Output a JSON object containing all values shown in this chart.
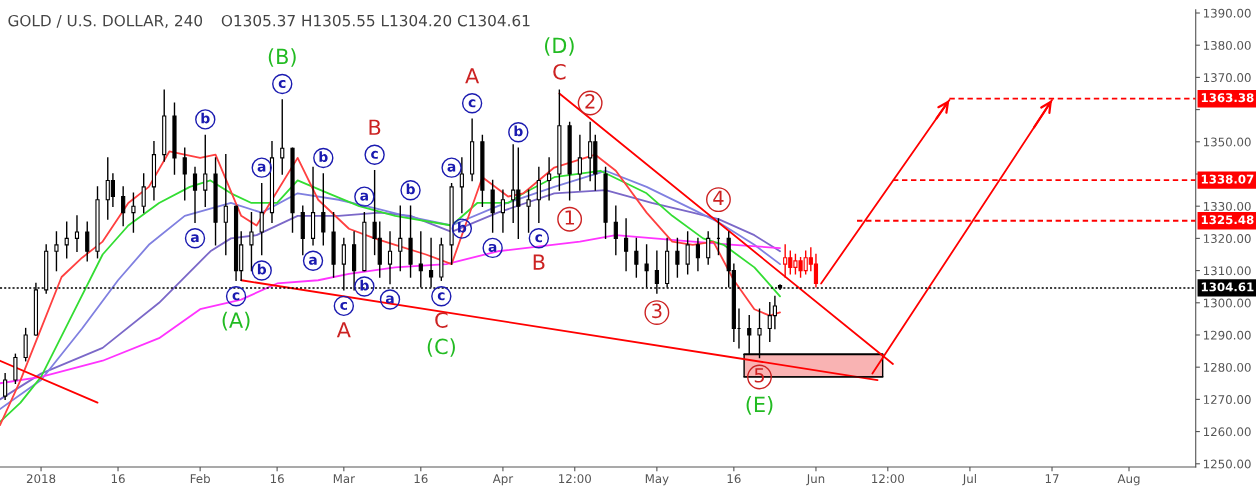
{
  "chart_data": {
    "type": "candlestick",
    "title": "GOLD / U.S. DOLLAR, 240",
    "subtitle": "O1305.37 H1305.55 L1304.20 C1304.61",
    "xlim": [
      "2017-12-24",
      "2018-08-14"
    ],
    "xticks": [
      {
        "value": "2018-01-01",
        "label": "2018"
      },
      {
        "value": "2018-01-16",
        "label": "16"
      },
      {
        "value": "2018-02-01",
        "label": "Feb"
      },
      {
        "value": "2018-02-16",
        "label": "16"
      },
      {
        "value": "2018-03-01",
        "label": "Mar"
      },
      {
        "value": "2018-03-16",
        "label": "16"
      },
      {
        "value": "2018-04-01",
        "label": "Apr"
      },
      {
        "value": "2018-04-15",
        "label": "12:00"
      },
      {
        "value": "2018-05-01",
        "label": "May"
      },
      {
        "value": "2018-05-16",
        "label": "16"
      },
      {
        "value": "2018-06-01",
        "label": "Jun"
      },
      {
        "value": "2018-06-15",
        "label": "12:00"
      },
      {
        "value": "2018-07-01",
        "label": "Jul"
      },
      {
        "value": "2018-07-17",
        "label": "17"
      },
      {
        "value": "2018-08-01",
        "label": "Aug"
      }
    ],
    "ylim": [
      1249,
      1391
    ],
    "yticks": [
      {
        "value": 1250,
        "label": "1250.00"
      },
      {
        "value": 1260,
        "label": "1260.00"
      },
      {
        "value": 1270,
        "label": "1270.00"
      },
      {
        "value": 1280,
        "label": "1280.00"
      },
      {
        "value": 1290,
        "label": "1290.00"
      },
      {
        "value": 1300,
        "label": "1300.00"
      },
      {
        "value": 1310,
        "label": "1310.00"
      },
      {
        "value": 1320,
        "label": "1320.00"
      },
      {
        "value": 1330,
        "label": "1330.00"
      },
      {
        "value": 1340,
        "label": null
      },
      {
        "value": 1350,
        "label": "1350.00"
      },
      {
        "value": 1360,
        "label": null
      },
      {
        "value": 1370,
        "label": "1370.00"
      },
      {
        "value": 1380,
        "label": "1380.00"
      },
      {
        "value": 1390,
        "label": "1390.00"
      }
    ],
    "series": [
      {
        "type": "line",
        "color": "#7b68c8",
        "x": [
          "2017-12-24",
          "2018-01-01",
          "2018-01-13",
          "2018-01-24",
          "2018-02-03",
          "2018-02-07",
          "2018-02-12",
          "2018-02-20",
          "2018-02-28",
          "2018-03-08",
          "2018-03-14",
          "2018-03-22",
          "2018-03-31",
          "2018-04-11",
          "2018-04-21",
          "2018-04-30",
          "2018-05-08",
          "2018-05-13",
          "2018-05-20",
          "2018-05-25"
        ],
        "values": [
          1270,
          1278,
          1286,
          1300,
          1316,
          1320,
          1321,
          1327,
          1327,
          1328,
          1327,
          1322,
          1328,
          1334,
          1335,
          1331,
          1328,
          1326,
          1321,
          1316
        ]
      },
      {
        "type": "line",
        "color": "#8080e0",
        "x": [
          "2017-12-24",
          "2018-01-01",
          "2018-01-09",
          "2018-01-16",
          "2018-01-22",
          "2018-01-29",
          "2018-02-07",
          "2018-02-13",
          "2018-02-20",
          "2018-02-28",
          "2018-03-08",
          "2018-03-13",
          "2018-03-22",
          "2018-03-31",
          "2018-04-11",
          "2018-04-21",
          "2018-04-29",
          "2018-05-08",
          "2018-05-13",
          "2018-05-20",
          "2018-05-25"
        ],
        "values": [
          1267,
          1276,
          1292,
          1307,
          1318,
          1327,
          1331,
          1328,
          1334,
          1332,
          1329,
          1327,
          1324,
          1330,
          1336,
          1341,
          1336,
          1329,
          1325,
          1318,
          1312
        ]
      },
      {
        "type": "line",
        "color": "#ff33ff",
        "x": [
          "2017-12-24",
          "2018-01-01",
          "2018-01-13",
          "2018-01-24",
          "2018-02-01",
          "2018-02-09",
          "2018-02-16",
          "2018-02-24",
          "2018-03-02",
          "2018-03-11",
          "2018-03-21",
          "2018-03-31",
          "2018-04-16",
          "2018-04-23",
          "2018-05-08",
          "2018-05-16",
          "2018-05-25"
        ],
        "values": [
          1275,
          1277,
          1282,
          1289,
          1298,
          1301,
          1306,
          1307,
          1309,
          1311,
          1312,
          1316,
          1319,
          1321,
          1319,
          1318,
          1317
        ]
      },
      {
        "type": "line",
        "color": "#33dd33",
        "x": [
          "2017-12-24",
          "2017-12-28",
          "2018-01-01",
          "2018-01-07",
          "2018-01-13",
          "2018-01-18",
          "2018-01-24",
          "2018-01-30",
          "2018-02-03",
          "2018-02-07",
          "2018-02-11",
          "2018-02-16",
          "2018-02-20",
          "2018-02-26",
          "2018-03-04",
          "2018-03-11",
          "2018-03-22",
          "2018-03-27",
          "2018-04-02",
          "2018-04-05",
          "2018-04-11",
          "2018-04-20",
          "2018-04-29",
          "2018-05-04",
          "2018-05-10",
          "2018-05-14",
          "2018-05-20",
          "2018-05-25"
        ],
        "values": [
          1263,
          1269,
          1277,
          1296,
          1315,
          1324,
          1331,
          1336,
          1338,
          1334,
          1331,
          1331,
          1338,
          1334,
          1330,
          1327,
          1324,
          1331,
          1331,
          1334,
          1339,
          1341,
          1334,
          1327,
          1320,
          1318,
          1311,
          1302
        ]
      },
      {
        "type": "line",
        "color": "#ff4040",
        "x": [
          "2017-12-24",
          "2017-12-28",
          "2018-01-01",
          "2018-01-05",
          "2018-01-09",
          "2018-01-13",
          "2018-01-18",
          "2018-01-22",
          "2018-01-26",
          "2018-02-01",
          "2018-02-04",
          "2018-02-09",
          "2018-02-12",
          "2018-02-15",
          "2018-02-20",
          "2018-02-24",
          "2018-03-02",
          "2018-03-07",
          "2018-03-11",
          "2018-03-17",
          "2018-03-22",
          "2018-03-26",
          "2018-03-28",
          "2018-04-02",
          "2018-04-05",
          "2018-04-11",
          "2018-04-19",
          "2018-04-23",
          "2018-04-29",
          "2018-05-04",
          "2018-05-08",
          "2018-05-12",
          "2018-05-16",
          "2018-05-20",
          "2018-05-23",
          "2018-05-25"
        ],
        "values": [
          1262,
          1276,
          1292,
          1308,
          1314,
          1319,
          1331,
          1336,
          1347,
          1345,
          1346,
          1327,
          1324,
          1332,
          1345,
          1332,
          1323,
          1320,
          1318,
          1315,
          1312,
          1330,
          1339,
          1333,
          1334,
          1342,
          1346,
          1341,
          1328,
          1319,
          1318,
          1319,
          1307,
          1298,
          1296,
          1297
        ]
      },
      {
        "color": "#000000",
        "x": [
          "2017-12-25",
          "2017-12-27",
          "2017-12-29",
          "2017-12-31",
          "2018-01-02",
          "2018-01-04",
          "2018-01-06",
          "2018-01-08",
          "2018-01-10",
          "2018-01-12",
          "2018-01-14",
          "2018-01-15",
          "2018-01-17",
          "2018-01-19",
          "2018-01-21",
          "2018-01-23",
          "2018-01-25",
          "2018-01-27",
          "2018-01-29",
          "2018-01-31",
          "2018-02-02",
          "2018-02-04",
          "2018-02-06",
          "2018-02-08",
          "2018-02-09",
          "2018-02-11",
          "2018-02-13",
          "2018-02-15",
          "2018-02-17",
          "2018-02-19",
          "2018-02-21",
          "2018-02-23",
          "2018-02-25",
          "2018-02-27",
          "2018-03-01",
          "2018-03-03",
          "2018-03-05",
          "2018-03-07",
          "2018-03-08",
          "2018-03-10",
          "2018-03-12",
          "2018-03-14",
          "2018-03-16",
          "2018-03-18",
          "2018-03-20",
          "2018-03-22",
          "2018-03-24",
          "2018-03-26",
          "2018-03-28",
          "2018-03-30",
          "2018-04-01",
          "2018-04-03",
          "2018-04-04",
          "2018-04-06",
          "2018-04-08",
          "2018-04-10",
          "2018-04-12",
          "2018-04-14",
          "2018-04-16",
          "2018-04-18",
          "2018-04-19",
          "2018-04-21",
          "2018-04-23",
          "2018-04-25",
          "2018-04-27",
          "2018-04-29",
          "2018-05-01",
          "2018-05-03",
          "2018-05-05",
          "2018-05-07",
          "2018-05-09",
          "2018-05-11",
          "2018-05-13",
          "2018-05-15",
          "2018-05-16",
          "2018-05-17",
          "2018-05-19",
          "2018-05-21",
          "2018-05-23",
          "2018-05-24",
          "2018-05-25"
        ],
        "ohlc": [
          [
            1271,
            1278,
            1270,
            1276
          ],
          [
            1276,
            1284,
            1275,
            1283
          ],
          [
            1283,
            1292,
            1282,
            1290
          ],
          [
            1290,
            1306,
            1290,
            1304
          ],
          [
            1304,
            1318,
            1303,
            1316
          ],
          [
            1316,
            1322,
            1310,
            1318
          ],
          [
            1318,
            1325,
            1314,
            1320
          ],
          [
            1320,
            1327,
            1316,
            1322
          ],
          [
            1322,
            1325,
            1313,
            1316
          ],
          [
            1316,
            1336,
            1314,
            1332
          ],
          [
            1332,
            1345,
            1326,
            1338
          ],
          [
            1338,
            1340,
            1330,
            1333
          ],
          [
            1333,
            1336,
            1324,
            1328
          ],
          [
            1328,
            1334,
            1322,
            1330
          ],
          [
            1330,
            1340,
            1328,
            1336
          ],
          [
            1336,
            1350,
            1332,
            1346
          ],
          [
            1346,
            1366,
            1344,
            1358
          ],
          [
            1358,
            1362,
            1340,
            1345
          ],
          [
            1345,
            1348,
            1332,
            1340
          ],
          [
            1340,
            1342,
            1325,
            1335
          ],
          [
            1335,
            1352,
            1330,
            1340
          ],
          [
            1340,
            1345,
            1318,
            1325
          ],
          [
            1325,
            1346,
            1315,
            1330
          ],
          [
            1330,
            1330,
            1307,
            1310
          ],
          [
            1310,
            1322,
            1307,
            1318
          ],
          [
            1318,
            1328,
            1310,
            1322
          ],
          [
            1322,
            1337,
            1315,
            1328
          ],
          [
            1328,
            1350,
            1325,
            1345
          ],
          [
            1345,
            1363,
            1340,
            1348
          ],
          [
            1348,
            1348,
            1322,
            1328
          ],
          [
            1328,
            1330,
            1315,
            1320
          ],
          [
            1320,
            1342,
            1318,
            1328
          ],
          [
            1328,
            1340,
            1318,
            1322
          ],
          [
            1322,
            1328,
            1308,
            1312
          ],
          [
            1312,
            1320,
            1304,
            1318
          ],
          [
            1318,
            1322,
            1304,
            1310
          ],
          [
            1310,
            1328,
            1310,
            1325
          ],
          [
            1325,
            1341,
            1315,
            1320
          ],
          [
            1320,
            1325,
            1308,
            1312
          ],
          [
            1312,
            1322,
            1306,
            1316
          ],
          [
            1316,
            1330,
            1310,
            1320
          ],
          [
            1320,
            1330,
            1308,
            1312
          ],
          [
            1312,
            1322,
            1305,
            1310
          ],
          [
            1310,
            1320,
            1305,
            1308
          ],
          [
            1308,
            1320,
            1307,
            1318
          ],
          [
            1318,
            1337,
            1312,
            1336
          ],
          [
            1336,
            1345,
            1328,
            1340
          ],
          [
            1340,
            1357,
            1338,
            1350
          ],
          [
            1350,
            1352,
            1330,
            1335
          ],
          [
            1335,
            1338,
            1322,
            1328
          ],
          [
            1328,
            1335,
            1322,
            1332
          ],
          [
            1332,
            1349,
            1325,
            1335
          ],
          [
            1335,
            1348,
            1320,
            1330
          ],
          [
            1330,
            1335,
            1322,
            1332
          ],
          [
            1332,
            1342,
            1325,
            1338
          ],
          [
            1338,
            1345,
            1332,
            1340
          ],
          [
            1340,
            1366,
            1335,
            1355
          ],
          [
            1355,
            1356,
            1332,
            1340
          ],
          [
            1340,
            1352,
            1335,
            1345
          ],
          [
            1345,
            1356,
            1338,
            1350
          ],
          [
            1350,
            1352,
            1335,
            1340
          ],
          [
            1340,
            1342,
            1320,
            1325
          ],
          [
            1325,
            1330,
            1315,
            1320
          ],
          [
            1320,
            1326,
            1310,
            1316
          ],
          [
            1316,
            1320,
            1308,
            1312
          ],
          [
            1312,
            1318,
            1305,
            1310
          ],
          [
            1310,
            1316,
            1303,
            1306
          ],
          [
            1306,
            1320,
            1305,
            1316
          ],
          [
            1316,
            1320,
            1308,
            1312
          ],
          [
            1312,
            1322,
            1309,
            1318
          ],
          [
            1318,
            1320,
            1310,
            1314
          ],
          [
            1314,
            1322,
            1312,
            1320
          ],
          [
            1320,
            1326,
            1315,
            1320
          ],
          [
            1320,
            1322,
            1305,
            1310
          ],
          [
            1310,
            1312,
            1288,
            1292
          ],
          [
            1292,
            1298,
            1286,
            1292
          ],
          [
            1292,
            1296,
            1284,
            1290
          ],
          [
            1290,
            1298,
            1283,
            1292
          ],
          [
            1292,
            1300,
            1288,
            1296
          ],
          [
            1296,
            1302,
            1292,
            1299
          ],
          [
            1305.37,
            1305.55,
            1304.2,
            1304.61
          ]
        ]
      },
      {
        "color": "#ff0000",
        "x": [
          "2018-05-26",
          "2018-05-27",
          "2018-05-28",
          "2018-05-29",
          "2018-05-30",
          "2018-05-31",
          "2018-06-01"
        ],
        "ohlc": [
          [
            1312,
            1318,
            1308,
            1314
          ],
          [
            1314,
            1316,
            1309,
            1311
          ],
          [
            1311,
            1315,
            1309,
            1313
          ],
          [
            1313,
            1314,
            1308,
            1310
          ],
          [
            1310,
            1316,
            1309,
            1314
          ],
          [
            1314,
            1317,
            1310,
            1312
          ],
          [
            1312,
            1315,
            1305,
            1306
          ]
        ]
      },
      {
        "type": "line",
        "color": "#000000",
        "x": [
          "2018-05-18",
          "2018-06-14"
        ],
        "values": [
          1284,
          1284
        ],
        "lower": [
          1277,
          1277
        ],
        "upper": [
          1284,
          1284
        ]
      },
      {
        "type": "line",
        "color": "#ff0000",
        "x": [
          "2017-12-24",
          "2018-01-12"
        ],
        "values": [
          1282,
          1269
        ]
      },
      {
        "type": "line",
        "color": "#ff0000",
        "x": [
          "2018-02-09",
          "2018-06-13"
        ],
        "values": [
          1307,
          1276
        ]
      },
      {
        "type": "line",
        "color": "#ff0000",
        "x": [
          "2018-04-12",
          "2018-06-16"
        ],
        "values": [
          1365,
          1281
        ]
      },
      {
        "type": "line",
        "color": "#ff0000",
        "x": [
          "2018-06-02",
          "2018-06-27"
        ],
        "values": [
          1306,
          1363
        ]
      },
      {
        "type": "line",
        "color": "#ff0000",
        "x": [
          "2018-06-12",
          "2018-07-17"
        ],
        "values": [
          1278,
          1363
        ]
      },
      {
        "type": "line",
        "color": "#ff0000",
        "line_style": "dashed",
        "x": [
          "2018-06-27",
          "2018-08-14"
        ],
        "values": [
          1363.38,
          1363.38
        ],
        "value_labels": [
          null,
          "1363.38"
        ]
      },
      {
        "type": "line",
        "color": "#ff0000",
        "line_style": "dashed",
        "x": [
          "2018-06-16",
          "2018-08-14"
        ],
        "values": [
          1338.07,
          1338.07
        ],
        "value_labels": [
          null,
          "1338.07"
        ]
      },
      {
        "type": "line",
        "color": "#ff0000",
        "line_style": "dashed",
        "x": [
          "2018-06-09",
          "2018-08-14"
        ],
        "values": [
          1325.48,
          1325.48
        ],
        "value_labels": [
          null,
          "1325.48"
        ]
      }
    ],
    "ref_lines": [
      {
        "axis": "y",
        "value": 1304.61,
        "label": "1304.61",
        "color": "#000000",
        "line_style": "dotted"
      }
    ],
    "annotations": [
      {
        "text": "c",
        "x": "2018-02-17",
        "y": 1363
      },
      {
        "text": "(B)",
        "x": "2018-02-17",
        "y": 1363
      },
      {
        "text": "C",
        "x": "2018-04-12",
        "y": 1366
      },
      {
        "text": "(D)",
        "x": "2018-04-12",
        "y": 1366
      },
      {
        "text": "c",
        "x": "2018-02-08",
        "y": 1307
      },
      {
        "text": "(A)",
        "x": "2018-02-08",
        "y": 1307
      },
      {
        "text": "c",
        "x": "2018-03-01",
        "y": 1304
      },
      {
        "text": "A",
        "x": "2018-03-01",
        "y": 1304
      },
      {
        "text": "c",
        "x": "2018-03-20",
        "y": 1307
      },
      {
        "text": "C",
        "x": "2018-03-20",
        "y": 1307
      },
      {
        "text": "(C)",
        "x": "2018-03-20",
        "y": 1307
      },
      {
        "text": "c",
        "x": "2018-03-26",
        "y": 1357
      },
      {
        "text": "A",
        "x": "2018-03-26",
        "y": 1357
      },
      {
        "text": "c",
        "x": "2018-03-07",
        "y": 1341
      },
      {
        "text": "B",
        "x": "2018-03-07",
        "y": 1341
      },
      {
        "text": "5",
        "x": "2018-05-21",
        "y": 1283
      },
      {
        "text": "(E)",
        "x": "2018-05-21",
        "y": 1283
      },
      {
        "text": "c",
        "x": "2018-04-08",
        "y": 1325
      },
      {
        "text": "B",
        "x": "2018-04-08",
        "y": 1325
      },
      {
        "text": "1",
        "x": "2018-04-14",
        "y": 1332
      },
      {
        "text": "2",
        "x": "2018-04-18",
        "y": 1356
      },
      {
        "text": "3",
        "x": "2018-05-01",
        "y": 1303
      },
      {
        "text": "4",
        "x": "2018-05-13",
        "y": 1326
      },
      {
        "text": "a",
        "x": "2018-01-31",
        "y": 1325
      },
      {
        "text": "b",
        "x": "2018-02-02",
        "y": 1352
      },
      {
        "text": "a",
        "x": "2018-02-13",
        "y": 1337
      },
      {
        "text": "b",
        "x": "2018-02-13",
        "y": 1315
      },
      {
        "text": "a",
        "x": "2018-02-23",
        "y": 1318
      },
      {
        "text": "b",
        "x": "2018-02-25",
        "y": 1340
      },
      {
        "text": "a",
        "x": "2018-03-05",
        "y": 1328
      },
      {
        "text": "b",
        "x": "2018-03-05",
        "y": 1310
      },
      {
        "text": "a",
        "x": "2018-03-10",
        "y": 1306
      },
      {
        "text": "b",
        "x": "2018-03-14",
        "y": 1330
      },
      {
        "text": "a",
        "x": "2018-03-22",
        "y": 1337
      },
      {
        "text": "b",
        "x": "2018-03-24",
        "y": 1328
      },
      {
        "text": "a",
        "x": "2018-03-30",
        "y": 1322
      },
      {
        "text": "b",
        "x": "2018-04-04",
        "y": 1348
      }
    ]
  }
}
